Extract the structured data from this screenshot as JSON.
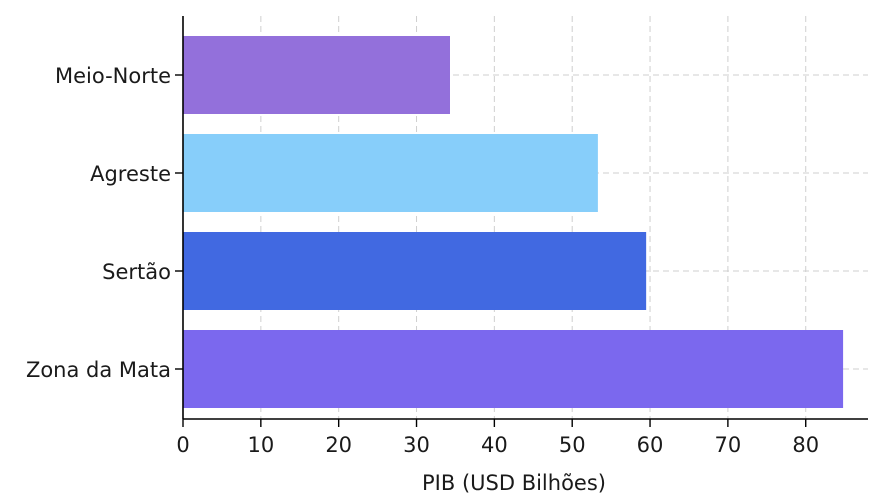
{
  "chart_data": {
    "type": "bar",
    "orientation": "horizontal",
    "categories": [
      "Meio-Norte",
      "Agreste",
      "Sertão",
      "Zona da Mata"
    ],
    "values": [
      34.3,
      53.3,
      59.5,
      84.8
    ],
    "colors": [
      "#9370db",
      "#87cefa",
      "#4169e1",
      "#7b68ee"
    ],
    "xlabel": "PIB (USD Bilhões)",
    "ylabel": "",
    "title": "",
    "xlim": [
      0,
      88
    ],
    "xticks": [
      "0",
      "10",
      "20",
      "30",
      "40",
      "50",
      "60",
      "70",
      "80"
    ],
    "grid": true,
    "legend": "none"
  }
}
